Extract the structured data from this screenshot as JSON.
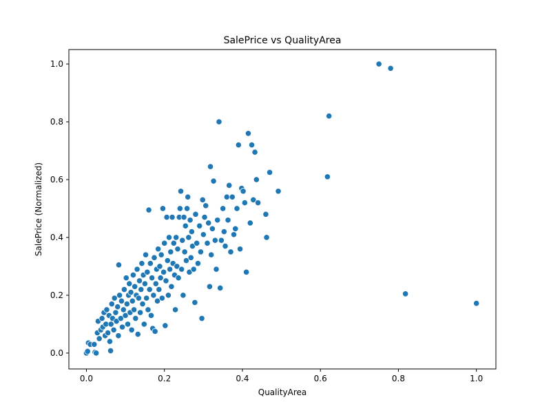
{
  "chart_data": {
    "type": "scatter",
    "title": "SalePrice vs QualityArea",
    "xlabel": "QualityArea",
    "ylabel": "SalePrice (Normalized)",
    "xlim": [
      -0.045,
      1.05
    ],
    "ylim": [
      -0.055,
      1.05
    ],
    "xticks": [
      0.0,
      0.2,
      0.4,
      0.6,
      0.8,
      1.0
    ],
    "yticks": [
      0.0,
      0.2,
      0.4,
      0.6,
      0.8,
      1.0
    ],
    "xtick_labels": [
      "0.0",
      "0.2",
      "0.4",
      "0.6",
      "0.8",
      "1.0"
    ],
    "ytick_labels": [
      "0.0",
      "0.2",
      "0.4",
      "0.6",
      "0.8",
      "1.0"
    ],
    "grid": false,
    "legend": "none",
    "point_color": "#1f77b4",
    "point_edge_color": "#ffffff",
    "series": [
      {
        "points": [
          [
            0.0,
            0.0
          ],
          [
            0.003,
            0.006
          ],
          [
            0.005,
            0.035
          ],
          [
            0.01,
            0.03
          ],
          [
            0.02,
            0.03
          ],
          [
            0.022,
            0.003
          ],
          [
            0.025,
            0.0
          ],
          [
            0.028,
            0.07
          ],
          [
            0.03,
            0.11
          ],
          [
            0.033,
            0.05
          ],
          [
            0.037,
            0.08
          ],
          [
            0.04,
            0.12
          ],
          [
            0.042,
            0.09
          ],
          [
            0.045,
            0.14
          ],
          [
            0.048,
            0.06
          ],
          [
            0.05,
            0.1
          ],
          [
            0.052,
            0.15
          ],
          [
            0.055,
            0.07
          ],
          [
            0.058,
            0.13
          ],
          [
            0.06,
            0.04
          ],
          [
            0.062,
            0.008
          ],
          [
            0.063,
            0.1
          ],
          [
            0.065,
            0.17
          ],
          [
            0.067,
            0.12
          ],
          [
            0.07,
            0.08
          ],
          [
            0.072,
            0.19
          ],
          [
            0.075,
            0.14
          ],
          [
            0.077,
            0.11
          ],
          [
            0.08,
            0.16
          ],
          [
            0.082,
            0.06
          ],
          [
            0.083,
            0.305
          ],
          [
            0.085,
            0.2
          ],
          [
            0.088,
            0.12
          ],
          [
            0.09,
            0.18
          ],
          [
            0.092,
            0.09
          ],
          [
            0.095,
            0.15
          ],
          [
            0.097,
            0.22
          ],
          [
            0.1,
            0.13
          ],
          [
            0.102,
            0.26
          ],
          [
            0.104,
            0.17
          ],
          [
            0.106,
            0.1
          ],
          [
            0.108,
            0.2
          ],
          [
            0.11,
            0.24
          ],
          [
            0.112,
            0.14
          ],
          [
            0.114,
            0.21
          ],
          [
            0.116,
            0.08
          ],
          [
            0.118,
            0.18
          ],
          [
            0.12,
            0.27
          ],
          [
            0.122,
            0.15
          ],
          [
            0.124,
            0.23
          ],
          [
            0.126,
            0.12
          ],
          [
            0.128,
            0.2
          ],
          [
            0.13,
            0.29
          ],
          [
            0.132,
            0.065
          ],
          [
            0.134,
            0.19
          ],
          [
            0.136,
            0.25
          ],
          [
            0.138,
            0.14
          ],
          [
            0.14,
            0.22
          ],
          [
            0.142,
            0.31
          ],
          [
            0.144,
            0.17
          ],
          [
            0.146,
            0.27
          ],
          [
            0.148,
            0.1
          ],
          [
            0.15,
            0.24
          ],
          [
            0.152,
            0.34
          ],
          [
            0.154,
            0.19
          ],
          [
            0.156,
            0.28
          ],
          [
            0.158,
            0.15
          ],
          [
            0.16,
            0.495
          ],
          [
            0.162,
            0.22
          ],
          [
            0.164,
            0.31
          ],
          [
            0.166,
            0.13
          ],
          [
            0.168,
            0.26
          ],
          [
            0.17,
            0.085
          ],
          [
            0.172,
            0.2
          ],
          [
            0.174,
            0.33
          ],
          [
            0.176,
            0.075
          ],
          [
            0.178,
            0.24
          ],
          [
            0.18,
            0.29
          ],
          [
            0.182,
            0.18
          ],
          [
            0.184,
            0.36
          ],
          [
            0.186,
            0.22
          ],
          [
            0.188,
            0.3
          ],
          [
            0.19,
            0.26
          ],
          [
            0.192,
            0.34
          ],
          [
            0.194,
            0.19
          ],
          [
            0.196,
            0.5
          ],
          [
            0.198,
            0.28
          ],
          [
            0.2,
            0.38
          ],
          [
            0.202,
            0.095
          ],
          [
            0.204,
            0.25
          ],
          [
            0.206,
            0.47
          ],
          [
            0.208,
            0.32
          ],
          [
            0.21,
            0.2
          ],
          [
            0.212,
            0.4
          ],
          [
            0.214,
            0.29
          ],
          [
            0.216,
            0.35
          ],
          [
            0.218,
            0.23
          ],
          [
            0.22,
            0.47
          ],
          [
            0.222,
            0.31
          ],
          [
            0.224,
            0.38
          ],
          [
            0.226,
            0.27
          ],
          [
            0.228,
            0.15
          ],
          [
            0.23,
            0.4
          ],
          [
            0.232,
            0.3
          ],
          [
            0.234,
            0.36
          ],
          [
            0.236,
            0.26
          ],
          [
            0.238,
            0.47
          ],
          [
            0.24,
            0.5
          ],
          [
            0.242,
            0.56
          ],
          [
            0.244,
            0.29
          ],
          [
            0.246,
            0.39
          ],
          [
            0.248,
            0.2
          ],
          [
            0.25,
            0.47
          ],
          [
            0.252,
            0.35
          ],
          [
            0.254,
            0.44
          ],
          [
            0.256,
            0.32
          ],
          [
            0.258,
            0.5
          ],
          [
            0.26,
            0.54
          ],
          [
            0.262,
            0.4
          ],
          [
            0.264,
            0.28
          ],
          [
            0.266,
            0.46
          ],
          [
            0.268,
            0.33
          ],
          [
            0.27,
            0.42
          ],
          [
            0.272,
            0.37
          ],
          [
            0.275,
            0.29
          ],
          [
            0.278,
            0.175
          ],
          [
            0.28,
            0.48
          ],
          [
            0.283,
            0.38
          ],
          [
            0.286,
            0.31
          ],
          [
            0.29,
            0.44
          ],
          [
            0.293,
            0.35
          ],
          [
            0.296,
            0.12
          ],
          [
            0.298,
            0.53
          ],
          [
            0.3,
            0.41
          ],
          [
            0.303,
            0.47
          ],
          [
            0.306,
            0.51
          ],
          [
            0.31,
            0.38
          ],
          [
            0.313,
            0.45
          ],
          [
            0.316,
            0.23
          ],
          [
            0.318,
            0.645
          ],
          [
            0.32,
            0.34
          ],
          [
            0.323,
            0.43
          ],
          [
            0.326,
            0.595
          ],
          [
            0.33,
            0.39
          ],
          [
            0.333,
            0.29
          ],
          [
            0.336,
            0.46
          ],
          [
            0.34,
            0.8
          ],
          [
            0.343,
            0.225
          ],
          [
            0.346,
            0.39
          ],
          [
            0.35,
            0.5
          ],
          [
            0.353,
            0.42
          ],
          [
            0.356,
            0.37
          ],
          [
            0.36,
            0.54
          ],
          [
            0.363,
            0.46
          ],
          [
            0.366,
            0.58
          ],
          [
            0.37,
            0.35
          ],
          [
            0.374,
            0.54
          ],
          [
            0.378,
            0.41
          ],
          [
            0.382,
            0.43
          ],
          [
            0.386,
            0.5
          ],
          [
            0.39,
            0.72
          ],
          [
            0.394,
            0.36
          ],
          [
            0.398,
            0.57
          ],
          [
            0.402,
            0.56
          ],
          [
            0.406,
            0.52
          ],
          [
            0.41,
            0.28
          ],
          [
            0.415,
            0.76
          ],
          [
            0.42,
            0.45
          ],
          [
            0.424,
            0.72
          ],
          [
            0.428,
            0.53
          ],
          [
            0.432,
            0.695
          ],
          [
            0.436,
            0.6
          ],
          [
            0.44,
            0.52
          ],
          [
            0.46,
            0.48
          ],
          [
            0.462,
            0.4
          ],
          [
            0.47,
            0.625
          ],
          [
            0.492,
            0.56
          ],
          [
            0.618,
            0.61
          ],
          [
            0.622,
            0.82
          ],
          [
            0.75,
            1.0
          ],
          [
            0.78,
            0.985
          ],
          [
            0.818,
            0.205
          ],
          [
            1.0,
            0.172
          ]
        ]
      }
    ]
  }
}
